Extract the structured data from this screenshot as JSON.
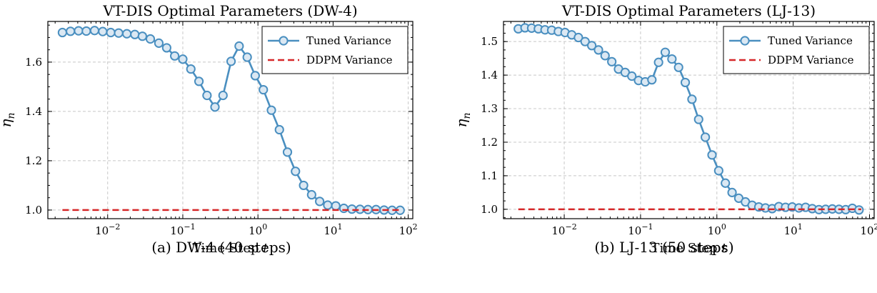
{
  "colors": {
    "series_line": "#4a8fc0",
    "marker_face": "#dbe8f3",
    "ddpm": "#d62728",
    "grid": "#c8c8c8",
    "axis": "#000000"
  },
  "captions": {
    "a": "(a) DW-4 (40 steps)",
    "b": "(b) LJ-13 (50 steps)"
  },
  "chart_data": [
    {
      "type": "line",
      "title": "VT-DIS Optimal Parameters (DW-4)",
      "xlabel": "Time Step t",
      "ylabel": "η_n",
      "xscale": "log",
      "xlim": [
        0.0016,
        115
      ],
      "ylim": [
        0.965,
        1.765
      ],
      "xticks": [
        0.01,
        0.1,
        1,
        10,
        100
      ],
      "xtick_labels": [
        "10^-2",
        "10^-1",
        "10^0",
        "10^1",
        "10^2"
      ],
      "yticks": [
        1.0,
        1.2,
        1.4,
        1.6
      ],
      "ytick_labels": [
        "1.0",
        "1.2",
        "1.4",
        "1.6"
      ],
      "grid": true,
      "legend": "top-right",
      "series": [
        {
          "name": "Tuned Variance",
          "style": "line-with-circle-markers",
          "x": [
            0.0025,
            0.0032,
            0.0041,
            0.0052,
            0.0067,
            0.0086,
            0.011,
            0.014,
            0.018,
            0.023,
            0.029,
            0.037,
            0.048,
            0.061,
            0.078,
            0.1,
            0.128,
            0.164,
            0.21,
            0.268,
            0.343,
            0.439,
            0.562,
            0.72,
            0.92,
            1.18,
            1.51,
            1.93,
            2.47,
            3.16,
            4.05,
            5.18,
            6.63,
            8.48,
            10.86,
            13.9,
            17.8,
            22.8,
            29.1,
            37.3,
            47.7,
            61,
            78
          ],
          "y": [
            1.72,
            1.725,
            1.727,
            1.726,
            1.728,
            1.724,
            1.72,
            1.718,
            1.715,
            1.712,
            1.705,
            1.694,
            1.677,
            1.658,
            1.625,
            1.612,
            1.572,
            1.522,
            1.465,
            1.418,
            1.465,
            1.603,
            1.665,
            1.62,
            1.545,
            1.488,
            1.405,
            1.326,
            1.235,
            1.157,
            1.1,
            1.062,
            1.035,
            1.02,
            1.017,
            1.007,
            1.004,
            1.003,
            1.002,
            1.002,
            1.0,
            0.999,
            0.999
          ]
        },
        {
          "name": "DDPM Variance",
          "style": "dashed",
          "x": [
            0.0025,
            78
          ],
          "y": [
            1.0,
            1.0
          ]
        }
      ]
    },
    {
      "type": "line",
      "title": "VT-DIS Optimal Parameters (LJ-13)",
      "xlabel": "Time Step t",
      "ylabel": "η_n",
      "xscale": "log",
      "xlim": [
        0.0016,
        115
      ],
      "ylim": [
        0.972,
        1.56
      ],
      "xticks": [
        0.01,
        0.1,
        1,
        10,
        100
      ],
      "xtick_labels": [
        "10^-2",
        "10^-1",
        "10^0",
        "10^1",
        "10^2"
      ],
      "yticks": [
        1.0,
        1.1,
        1.2,
        1.3,
        1.4,
        1.5
      ],
      "ytick_labels": [
        "1.0",
        "1.1",
        "1.2",
        "1.3",
        "1.4",
        "1.5"
      ],
      "grid": true,
      "legend": "top-right",
      "series": [
        {
          "name": "Tuned Variance",
          "style": "line-with-circle-markers",
          "x": [
            0.0025,
            0.00306,
            0.00374,
            0.00458,
            0.0056,
            0.00685,
            0.00838,
            0.01025,
            0.01254,
            0.01534,
            0.01876,
            0.02295,
            0.0281,
            0.0343,
            0.042,
            0.0514,
            0.0629,
            0.0769,
            0.0941,
            0.1151,
            0.1408,
            0.1722,
            0.2107,
            0.2577,
            0.3152,
            0.3856,
            0.4717,
            0.577,
            0.706,
            0.864,
            1.057,
            1.293,
            1.582,
            1.935,
            2.367,
            2.896,
            3.543,
            4.334,
            5.302,
            6.486,
            7.935,
            9.71,
            11.88,
            14.53,
            17.78,
            21.75,
            26.6,
            32.55,
            39.82,
            48.7,
            59.6,
            72.9
          ],
          "y": [
            1.538,
            1.541,
            1.54,
            1.538,
            1.535,
            1.534,
            1.53,
            1.527,
            1.52,
            1.512,
            1.5,
            1.488,
            1.475,
            1.458,
            1.44,
            1.418,
            1.408,
            1.397,
            1.384,
            1.38,
            1.386,
            1.438,
            1.468,
            1.448,
            1.423,
            1.378,
            1.328,
            1.268,
            1.215,
            1.162,
            1.115,
            1.078,
            1.05,
            1.033,
            1.022,
            1.012,
            1.007,
            1.004,
            1.002,
            1.008,
            1.006,
            1.007,
            1.004,
            1.006,
            1.002,
            0.999,
            1.0,
            1.001,
            1.0,
            0.999,
            1.003,
            0.998
          ]
        },
        {
          "name": "DDPM Variance",
          "style": "dashed",
          "x": [
            0.0025,
            78
          ],
          "y": [
            1.0,
            1.0
          ]
        }
      ]
    }
  ]
}
